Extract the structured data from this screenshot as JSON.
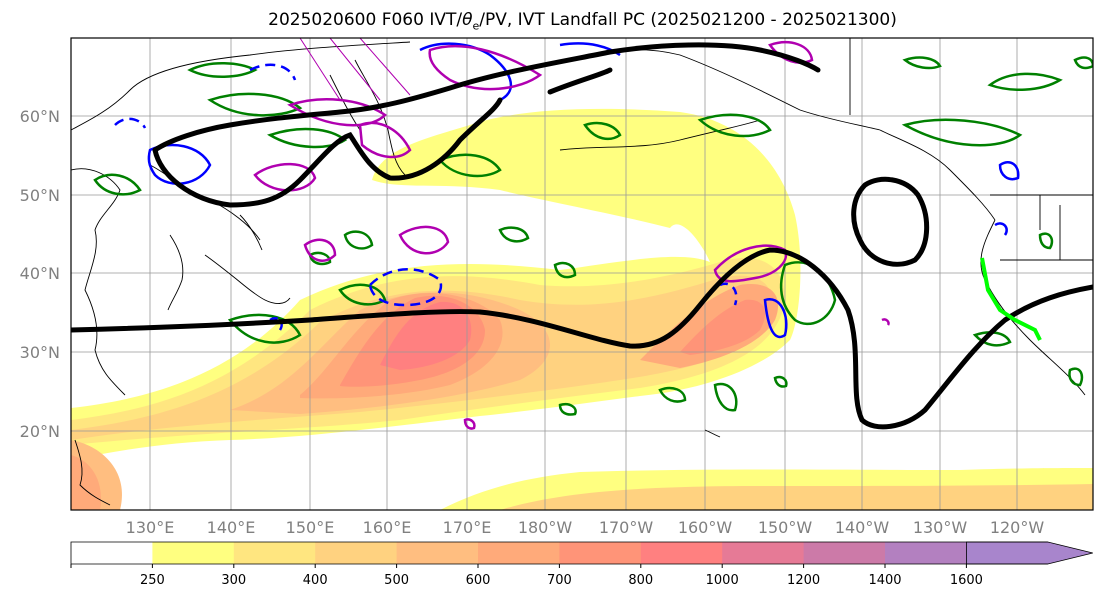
{
  "title_main": "2025020600 F060 IVT/",
  "title_theta": "θ",
  "title_sub": "e",
  "title_rest": "/PV, IVT Landfall PC (2025021200 - 2025021300)",
  "lat_labels": [
    "60°N",
    "50°N",
    "40°N",
    "30°N",
    "20°N"
  ],
  "lon_labels": [
    "130°E",
    "140°E",
    "150°E",
    "160°E",
    "170°E",
    "180°W",
    "170°W",
    "160°W",
    "150°W",
    "140°W",
    "130°W",
    "120°W"
  ],
  "colorbar": {
    "ticks": [
      "250",
      "300",
      "400",
      "500",
      "600",
      "700",
      "800",
      "1000",
      "1200",
      "1400",
      "1600"
    ],
    "colors": [
      "#ffffff",
      "#ffff80",
      "#ffe680",
      "#ffd280",
      "#ffbe80",
      "#ffaa7a",
      "#ff9478",
      "#ff8080",
      "#e67a96",
      "#cc7aa8",
      "#b380c0",
      "#a885cc"
    ]
  },
  "legend_colors": {
    "ivt_fill": "#ffb070",
    "theta_contour": "#000000",
    "pv_green": "#008000",
    "pv_blue": "#0000ff",
    "pv_magenta": "#b000b0",
    "landfall": "#00ff00"
  }
}
